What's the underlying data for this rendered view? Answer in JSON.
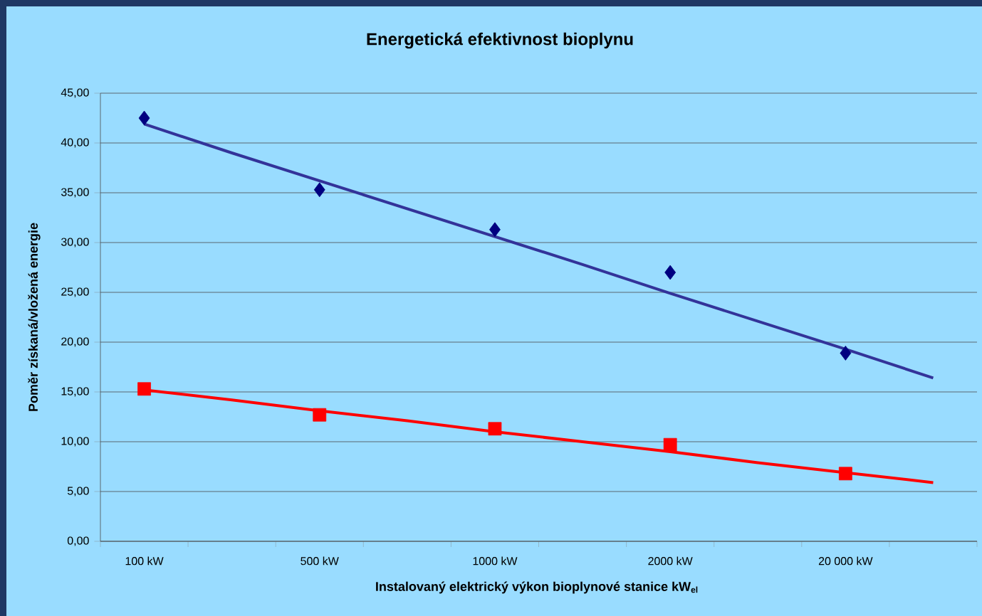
{
  "chart_data": {
    "type": "scatter",
    "title": "Energetická efektivnost bioplynu",
    "xlabel": "Instalovaný elektrický výkon bioplynové stanice  kW$_{el}$",
    "ylabel": "Poměr  získaná/vložená  energie",
    "categories": [
      "100 kW",
      null,
      "500 kW",
      null,
      "1000 kW",
      null,
      "2000 kW",
      null,
      "20 000 kW",
      null
    ],
    "series": [
      {
        "marker": "diamond",
        "color": "#000080",
        "values": [
          42.5,
          null,
          35.3,
          null,
          31.3,
          null,
          27.0,
          null,
          18.9,
          null
        ]
      },
      {
        "marker": "square",
        "color": "#ff0000",
        "values": [
          15.3,
          null,
          12.7,
          null,
          11.3,
          null,
          9.7,
          null,
          6.8,
          null
        ]
      },
      {
        "type": "line",
        "marker": "none",
        "color": "#333399",
        "values": [
          41.9,
          39.0,
          36.2,
          33.4,
          30.6,
          27.8,
          24.9,
          22.1,
          19.3,
          16.4
        ]
      },
      {
        "type": "line",
        "marker": "none",
        "color": "#ff0000",
        "values": [
          15.2,
          14.2,
          13.1,
          12.1,
          11.0,
          10.0,
          9.0,
          7.9,
          6.9,
          5.9
        ]
      }
    ],
    "ylim": [
      0,
      45
    ],
    "yticks": [
      {
        "value": 0,
        "label": "0,00"
      },
      {
        "value": 5,
        "label": "5,00"
      },
      {
        "value": 10,
        "label": "10,00"
      },
      {
        "value": 15,
        "label": "15,00"
      },
      {
        "value": 20,
        "label": "20,00"
      },
      {
        "value": 25,
        "label": "25,00"
      },
      {
        "value": 30,
        "label": "30,00"
      },
      {
        "value": 35,
        "label": "35,00"
      },
      {
        "value": 40,
        "label": "40,00"
      },
      {
        "value": 45,
        "label": "45,00"
      }
    ],
    "grid": "y"
  }
}
